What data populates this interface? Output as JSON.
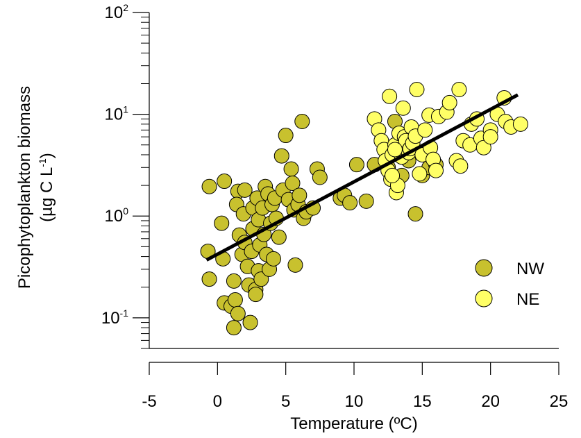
{
  "chart_data": {
    "type": "scatter",
    "xlabel": "Temperature (ºC)",
    "ylabel_line1": "Picophytoplankton biomass",
    "ylabel_line2_prefix": "(µg C L",
    "ylabel_line2_exp": "-1",
    "ylabel_line2_suffix": ")",
    "xlim": [
      -5,
      25
    ],
    "ylim": [
      0.05,
      100
    ],
    "yscale": "log",
    "x_ticks": [
      -5,
      0,
      5,
      10,
      15,
      20,
      25
    ],
    "x_tick_labels": [
      "-5",
      "0",
      "5",
      "10",
      "15",
      "20",
      "25"
    ],
    "y_ticks": [
      {
        "value": 0.1,
        "base": "10",
        "exp": "-1"
      },
      {
        "value": 1,
        "base": "10",
        "exp": "0"
      },
      {
        "value": 10,
        "base": "10",
        "exp": "1"
      },
      {
        "value": 100,
        "base": "10",
        "exp": "2"
      }
    ],
    "grid": false,
    "legend_position": "right",
    "series": [
      {
        "name": "NW",
        "color": "#C8C12E",
        "points": [
          [
            -0.6,
            1.95
          ],
          [
            0.5,
            2.2
          ],
          [
            -0.7,
            0.45
          ],
          [
            -0.6,
            0.24
          ],
          [
            0.3,
            0.85
          ],
          [
            0.4,
            0.38
          ],
          [
            0.5,
            0.14
          ],
          [
            1.0,
            0.13
          ],
          [
            1.2,
            0.23
          ],
          [
            1.3,
            0.15
          ],
          [
            1.2,
            0.08
          ],
          [
            1.5,
            0.11
          ],
          [
            1.5,
            1.75
          ],
          [
            1.4,
            1.3
          ],
          [
            1.6,
            0.65
          ],
          [
            1.8,
            0.42
          ],
          [
            1.9,
            1.05
          ],
          [
            2.0,
            0.55
          ],
          [
            2.0,
            1.8
          ],
          [
            2.2,
            0.32
          ],
          [
            2.3,
            0.21
          ],
          [
            2.4,
            0.09
          ],
          [
            2.5,
            0.45
          ],
          [
            2.6,
            0.75
          ],
          [
            2.6,
            1.2
          ],
          [
            2.8,
            0.19
          ],
          [
            2.8,
            0.17
          ],
          [
            2.9,
            1.5
          ],
          [
            3.0,
            0.92
          ],
          [
            3.0,
            0.29
          ],
          [
            3.1,
            0.52
          ],
          [
            3.2,
            0.24
          ],
          [
            3.3,
            1.2
          ],
          [
            3.4,
            0.66
          ],
          [
            3.5,
            1.95
          ],
          [
            3.6,
            0.42
          ],
          [
            3.7,
            1.65
          ],
          [
            3.8,
            0.3
          ],
          [
            3.9,
            0.85
          ],
          [
            4.0,
            1.3
          ],
          [
            4.1,
            0.38
          ],
          [
            4.2,
            1.5
          ],
          [
            4.3,
            0.95
          ],
          [
            4.5,
            0.62
          ],
          [
            4.7,
            3.9
          ],
          [
            4.8,
            1.8
          ],
          [
            5.0,
            6.2
          ],
          [
            5.2,
            1.45
          ],
          [
            5.4,
            2.9
          ],
          [
            5.5,
            2.1
          ],
          [
            5.6,
            1.15
          ],
          [
            5.7,
            0.33
          ],
          [
            5.9,
            1.3
          ],
          [
            6.0,
            1.6
          ],
          [
            6.2,
            8.5
          ],
          [
            6.3,
            0.95
          ],
          [
            6.5,
            1.1
          ],
          [
            7.0,
            1.2
          ],
          [
            7.3,
            2.9
          ],
          [
            7.5,
            2.4
          ],
          [
            9.0,
            1.5
          ],
          [
            9.3,
            1.6
          ],
          [
            9.7,
            1.35
          ],
          [
            10.2,
            3.2
          ],
          [
            10.9,
            1.4
          ],
          [
            11.5,
            3.2
          ],
          [
            13.0,
            8.5
          ],
          [
            14.5,
            1.05
          ],
          [
            13.5,
            2.5
          ],
          [
            14.0,
            3.5
          ],
          [
            15.0,
            2.5
          ],
          [
            15.5,
            3.0
          ],
          [
            16.0,
            3.2
          ],
          [
            12.5,
            3.0
          ]
        ]
      },
      {
        "name": "NE",
        "color": "#FFFF66",
        "points": [
          [
            11.5,
            9.0
          ],
          [
            11.8,
            7.0
          ],
          [
            12.0,
            5.5
          ],
          [
            12.2,
            4.5
          ],
          [
            12.3,
            3.5
          ],
          [
            12.5,
            2.8
          ],
          [
            12.6,
            15.0
          ],
          [
            12.7,
            2.3
          ],
          [
            12.8,
            4.0
          ],
          [
            13.0,
            5.0
          ],
          [
            13.1,
            1.7
          ],
          [
            13.2,
            2.0
          ],
          [
            13.3,
            6.5
          ],
          [
            13.5,
            3.8
          ],
          [
            13.6,
            11.5
          ],
          [
            13.7,
            6.0
          ],
          [
            13.8,
            5.5
          ],
          [
            14.0,
            4.2
          ],
          [
            14.1,
            4.6
          ],
          [
            14.2,
            7.5
          ],
          [
            14.3,
            5.2
          ],
          [
            14.5,
            6.1
          ],
          [
            14.6,
            17.5
          ],
          [
            14.8,
            2.6
          ],
          [
            15.0,
            4.0
          ],
          [
            15.2,
            7.0
          ],
          [
            15.5,
            9.8
          ],
          [
            15.6,
            4.7
          ],
          [
            15.8,
            3.6
          ],
          [
            16.0,
            2.8
          ],
          [
            16.2,
            9.5
          ],
          [
            16.8,
            10.5
          ],
          [
            17.0,
            13.0
          ],
          [
            17.5,
            3.5
          ],
          [
            17.7,
            17.5
          ],
          [
            17.8,
            3.1
          ],
          [
            18.0,
            5.5
          ],
          [
            18.5,
            5.0
          ],
          [
            18.6,
            8.0
          ],
          [
            19.0,
            9.0
          ],
          [
            19.3,
            5.8
          ],
          [
            19.5,
            4.7
          ],
          [
            20.0,
            7.0
          ],
          [
            20.5,
            10.0
          ],
          [
            21.0,
            14.5
          ],
          [
            21.1,
            8.5
          ],
          [
            21.5,
            7.5
          ],
          [
            22.2,
            8.0
          ],
          [
            20.0,
            6.0
          ],
          [
            13.0,
            4.5
          ],
          [
            12.8,
            2.5
          ]
        ]
      }
    ],
    "fit_line": {
      "x": [
        -0.8,
        22.0
      ],
      "y": [
        0.37,
        15.5
      ]
    }
  }
}
